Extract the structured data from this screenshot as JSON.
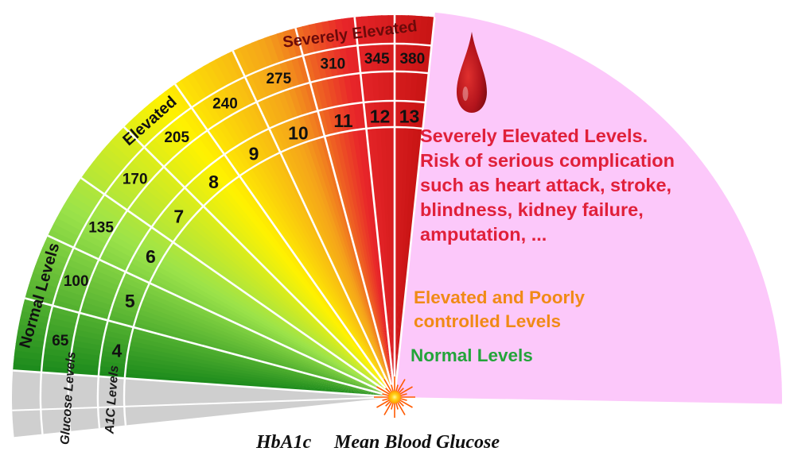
{
  "palette": {
    "normal_deep": "#1c8a1c",
    "normal_light": "#9be34a",
    "yellow": "#fff200",
    "orange": "#f5a31a",
    "red": "#e8262a",
    "dark_red": "#c81414",
    "grey": "#cfcfcf",
    "pink": "#fcc8fa",
    "white_lines": "#ffffff",
    "severe_text": "#e0203a",
    "elevated_text": "#f08a16",
    "normal_text": "#23a43a"
  },
  "glucose_levels": [
    "65",
    "100",
    "135",
    "170",
    "205",
    "240",
    "275",
    "310",
    "345",
    "380"
  ],
  "a1c_levels": [
    "4",
    "5",
    "6",
    "7",
    "8",
    "9",
    "10",
    "11",
    "12",
    "13"
  ],
  "ring_labels": {
    "glucose": "Glucose Levels",
    "a1c": "A1C Levels"
  },
  "zone_labels": {
    "normal": "Normal Levels",
    "elevated": "Elevated",
    "severe": "Severely Elevated"
  },
  "annotations": {
    "severe": "Severely Elevated Levels. Risk of serious complication such as heart attack, stroke, blindness, kidney failure, amputation, ...",
    "elevated": "Elevated and Poorly controlled Levels",
    "normal": "Normal Levels"
  },
  "icons": {
    "drop": "blood-drop-icon",
    "sun": "starburst-icon"
  },
  "bottom_labels": {
    "hba1c": "HbA1c",
    "mean_glucose": "Mean Blood Glucose"
  }
}
